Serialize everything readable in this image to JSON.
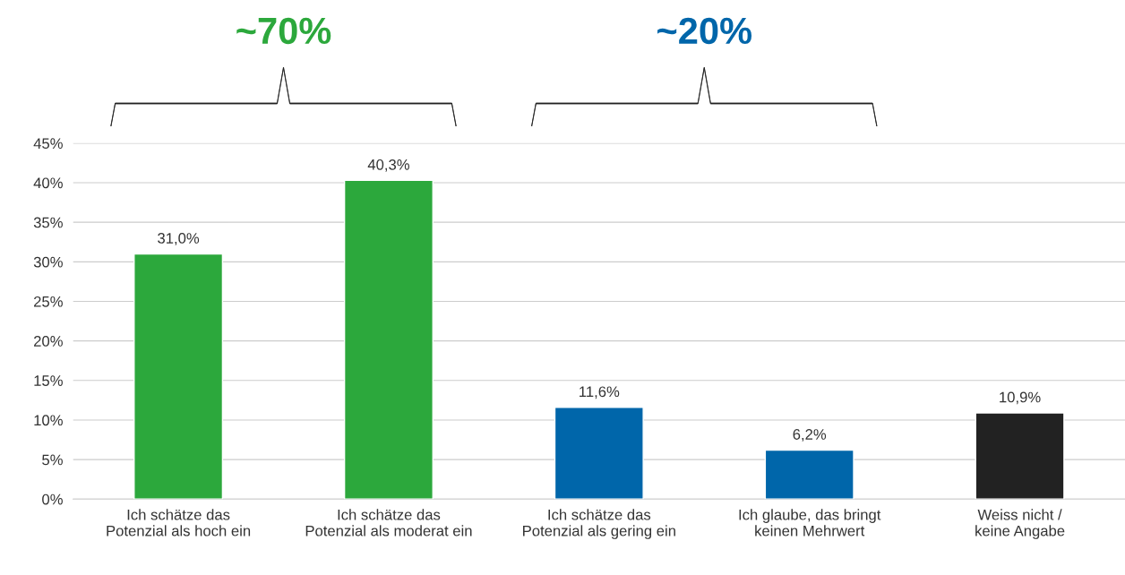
{
  "chart_data": {
    "type": "bar",
    "categories": [
      "Ich schätze das\nPotenzial als hoch ein",
      "Ich schätze das\nPotenzial als moderat ein",
      "Ich schätze das\nPotenzial als gering ein",
      "Ich glaube, das bringt\nkeinen Mehrwert",
      "Weiss nicht /\nkeine Angabe"
    ],
    "values": [
      31.0,
      40.3,
      11.6,
      6.2,
      10.9
    ],
    "value_labels": [
      "31,0%",
      "40,3%",
      "11,6%",
      "6,2%",
      "10,9%"
    ],
    "colors": [
      "#2ca83c",
      "#2ca83c",
      "#0066aa",
      "#0066aa",
      "#222222"
    ],
    "ylim": [
      0,
      45
    ],
    "yticks": [
      {
        "value": 0,
        "label": "0%"
      },
      {
        "value": 5,
        "label": "5%"
      },
      {
        "value": 10,
        "label": "10%"
      },
      {
        "value": 15,
        "label": "15%"
      },
      {
        "value": 20,
        "label": "20%"
      },
      {
        "value": 25,
        "label": "25%"
      },
      {
        "value": 30,
        "label": "30%"
      },
      {
        "value": 35,
        "label": "35%"
      },
      {
        "value": 40,
        "label": "40%"
      },
      {
        "value": 45,
        "label": "45%"
      }
    ],
    "grid": "y",
    "annotations": [
      "~70%",
      "~20%"
    ]
  }
}
